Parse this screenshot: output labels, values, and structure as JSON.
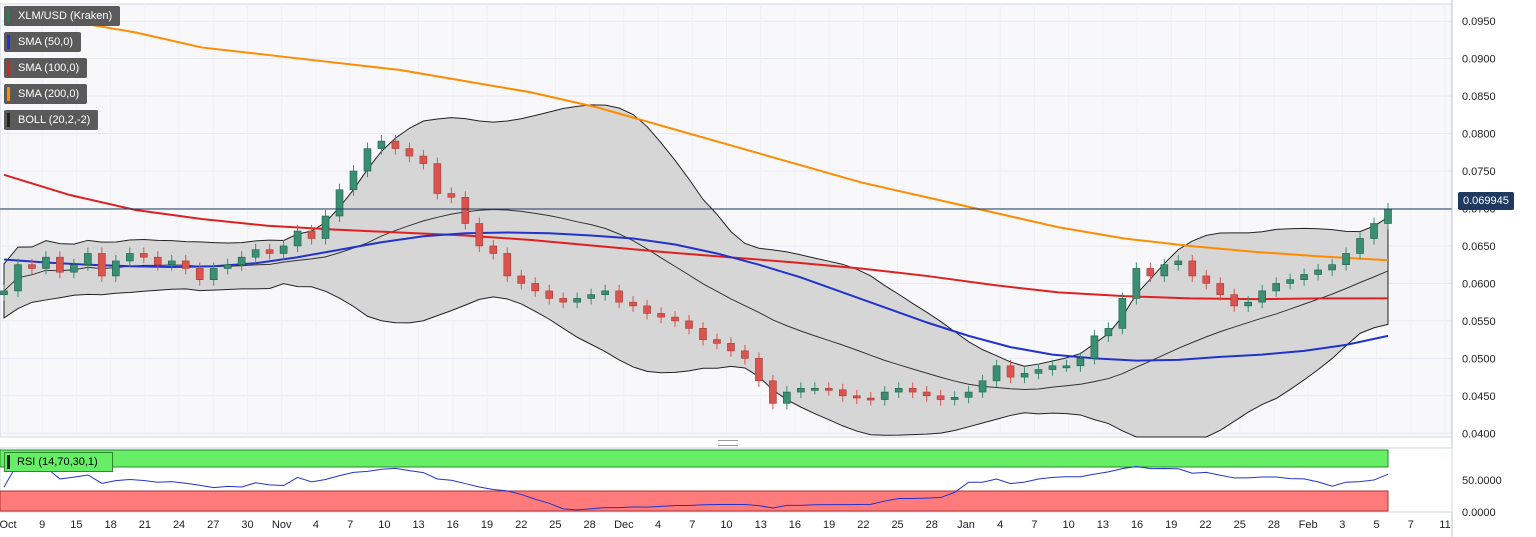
{
  "legends": [
    {
      "label": "XLM/USD (Kraken)",
      "color": "#2a7a5e"
    },
    {
      "label": "SMA (50,0)",
      "color": "#2233cc"
    },
    {
      "label": "SMA (100,0)",
      "color": "#e02020"
    },
    {
      "label": "SMA (200,0)",
      "color": "#ff8c00"
    },
    {
      "label": "BOLL (20,2,-2)",
      "color": "#222222"
    }
  ],
  "rsi": {
    "label": "RSI (14,70,30,1)",
    "tick_labels": [
      "50.0000",
      "0.0000"
    ]
  },
  "current_price": "0.069945",
  "colors": {
    "up": "#3a8f72",
    "down": "#d9534f",
    "sma50": "#2233cc",
    "sma100": "#e02020",
    "sma200": "#ff8c00",
    "boll": "#222222",
    "band_fill": "#d6d6d6",
    "rsi_line": "#2233cc",
    "overbought": "#66ee66",
    "oversold": "#ff7a7a"
  },
  "chart_data": {
    "type": "line",
    "title": "XLM/USD (Kraken)",
    "y_ticks": [
      "0.0950",
      "0.0900",
      "0.0850",
      "0.0800",
      "0.0750",
      "0.0700",
      "0.0650",
      "0.0600",
      "0.0550",
      "0.0500",
      "0.0450",
      "0.0400"
    ],
    "ylim": [
      0.0395,
      0.0973
    ],
    "x_ticks": [
      "Oct",
      "9",
      "15",
      "18",
      "21",
      "24",
      "27",
      "30",
      "Nov",
      "4",
      "7",
      "10",
      "13",
      "16",
      "19",
      "22",
      "25",
      "28",
      "Dec",
      "4",
      "7",
      "10",
      "13",
      "16",
      "19",
      "22",
      "25",
      "28",
      "Jan",
      "4",
      "7",
      "10",
      "13",
      "16",
      "19",
      "22",
      "25",
      "28",
      "Feb",
      "3",
      "5",
      "7",
      "11"
    ],
    "series": [
      {
        "name": "XLM/USD (Kraken)",
        "type": "candlestick",
        "values": [
          0.059,
          0.0625,
          0.062,
          0.0635,
          0.0615,
          0.0625,
          0.064,
          0.061,
          0.063,
          0.064,
          0.0635,
          0.0625,
          0.063,
          0.062,
          0.0605,
          0.062,
          0.0625,
          0.0635,
          0.0645,
          0.064,
          0.065,
          0.067,
          0.066,
          0.069,
          0.0725,
          0.075,
          0.078,
          0.079,
          0.078,
          0.077,
          0.076,
          0.072,
          0.0715,
          0.068,
          0.065,
          0.064,
          0.061,
          0.06,
          0.059,
          0.058,
          0.0575,
          0.058,
          0.0585,
          0.059,
          0.0575,
          0.057,
          0.056,
          0.0555,
          0.055,
          0.054,
          0.0525,
          0.052,
          0.051,
          0.05,
          0.047,
          0.044,
          0.0455,
          0.046,
          0.046,
          0.0458,
          0.045,
          0.0447,
          0.0445,
          0.0455,
          0.046,
          0.0455,
          0.045,
          0.0445,
          0.0448,
          0.0455,
          0.047,
          0.049,
          0.0475,
          0.048,
          0.0485,
          0.049,
          0.049,
          0.05,
          0.053,
          0.054,
          0.058,
          0.062,
          0.061,
          0.0625,
          0.063,
          0.061,
          0.06,
          0.0585,
          0.057,
          0.0575,
          0.059,
          0.06,
          0.0605,
          0.0612,
          0.0618,
          0.0625,
          0.064,
          0.066,
          0.068,
          0.06994
        ]
      },
      {
        "name": "SMA (50,0)",
        "values": [
          0.0632,
          0.0628,
          0.0625,
          0.0623,
          0.0622,
          0.0623,
          0.0627,
          0.0635,
          0.0645,
          0.0655,
          0.0663,
          0.0667,
          0.0668,
          0.0667,
          0.0664,
          0.066,
          0.0652,
          0.064,
          0.0625,
          0.0608,
          0.0588,
          0.0568,
          0.0548,
          0.053,
          0.0515,
          0.0505,
          0.05,
          0.0497,
          0.0498,
          0.0502,
          0.0505,
          0.051,
          0.0518,
          0.053
        ]
      },
      {
        "name": "SMA (100,0)",
        "values": [
          0.0745,
          0.0718,
          0.0698,
          0.0686,
          0.0677,
          0.0672,
          0.0668,
          0.0664,
          0.0658,
          0.065,
          0.0642,
          0.0635,
          0.0628,
          0.062,
          0.061,
          0.0598,
          0.0588,
          0.0583,
          0.058,
          0.0579,
          0.058,
          0.058
        ]
      },
      {
        "name": "SMA (200,0)",
        "values": [
          0.0963,
          0.095,
          0.0935,
          0.0915,
          0.0905,
          0.0895,
          0.0885,
          0.087,
          0.0855,
          0.0835,
          0.081,
          0.0785,
          0.076,
          0.0735,
          0.0715,
          0.0695,
          0.0675,
          0.066,
          0.065,
          0.0642,
          0.0636,
          0.0631
        ]
      }
    ],
    "annotations": [
      "0.069945"
    ]
  }
}
